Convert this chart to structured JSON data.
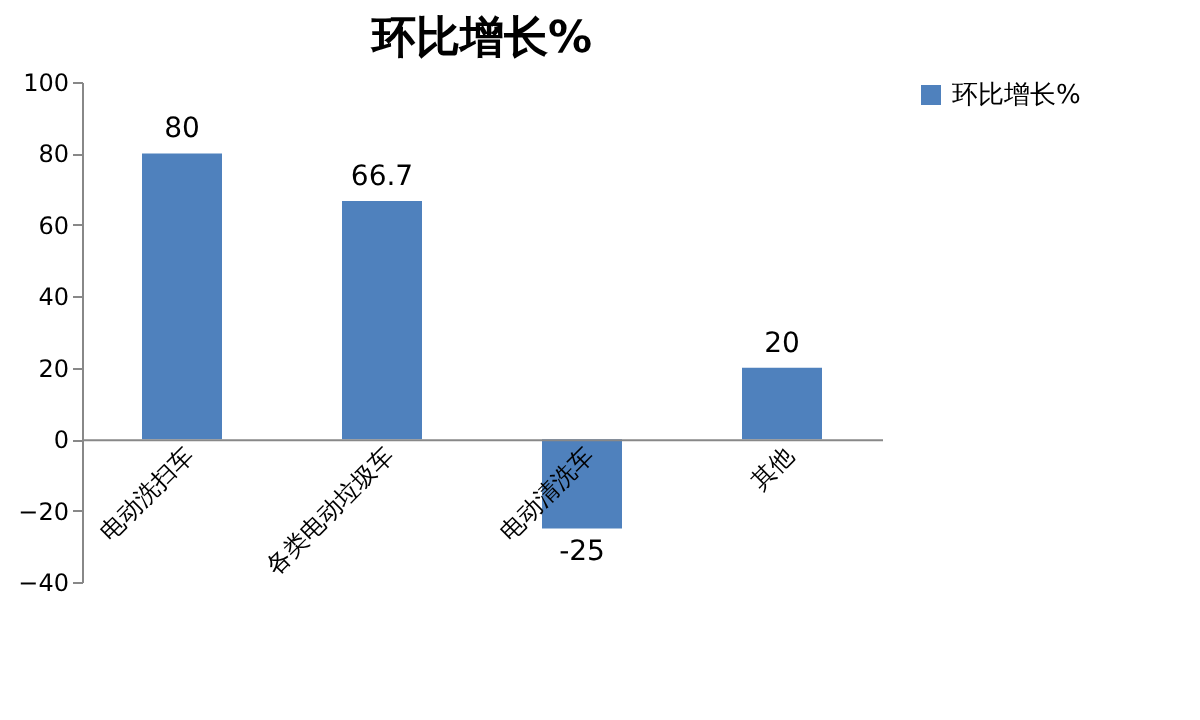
{
  "chart_data": {
    "type": "bar",
    "title": "环比增长%",
    "categories": [
      "电动洗扫车",
      "各类电动垃圾车",
      "电动清洗车",
      "其他"
    ],
    "series": [
      {
        "name": "环比增长%",
        "color": "#4f81bd",
        "values": [
          80,
          66.7,
          -25,
          20
        ]
      }
    ],
    "ylim": [
      -40,
      100
    ],
    "yticks": [
      -40,
      -20,
      0,
      20,
      40,
      60,
      80,
      100
    ],
    "data_labels": true,
    "grid": false,
    "legend": "right"
  }
}
